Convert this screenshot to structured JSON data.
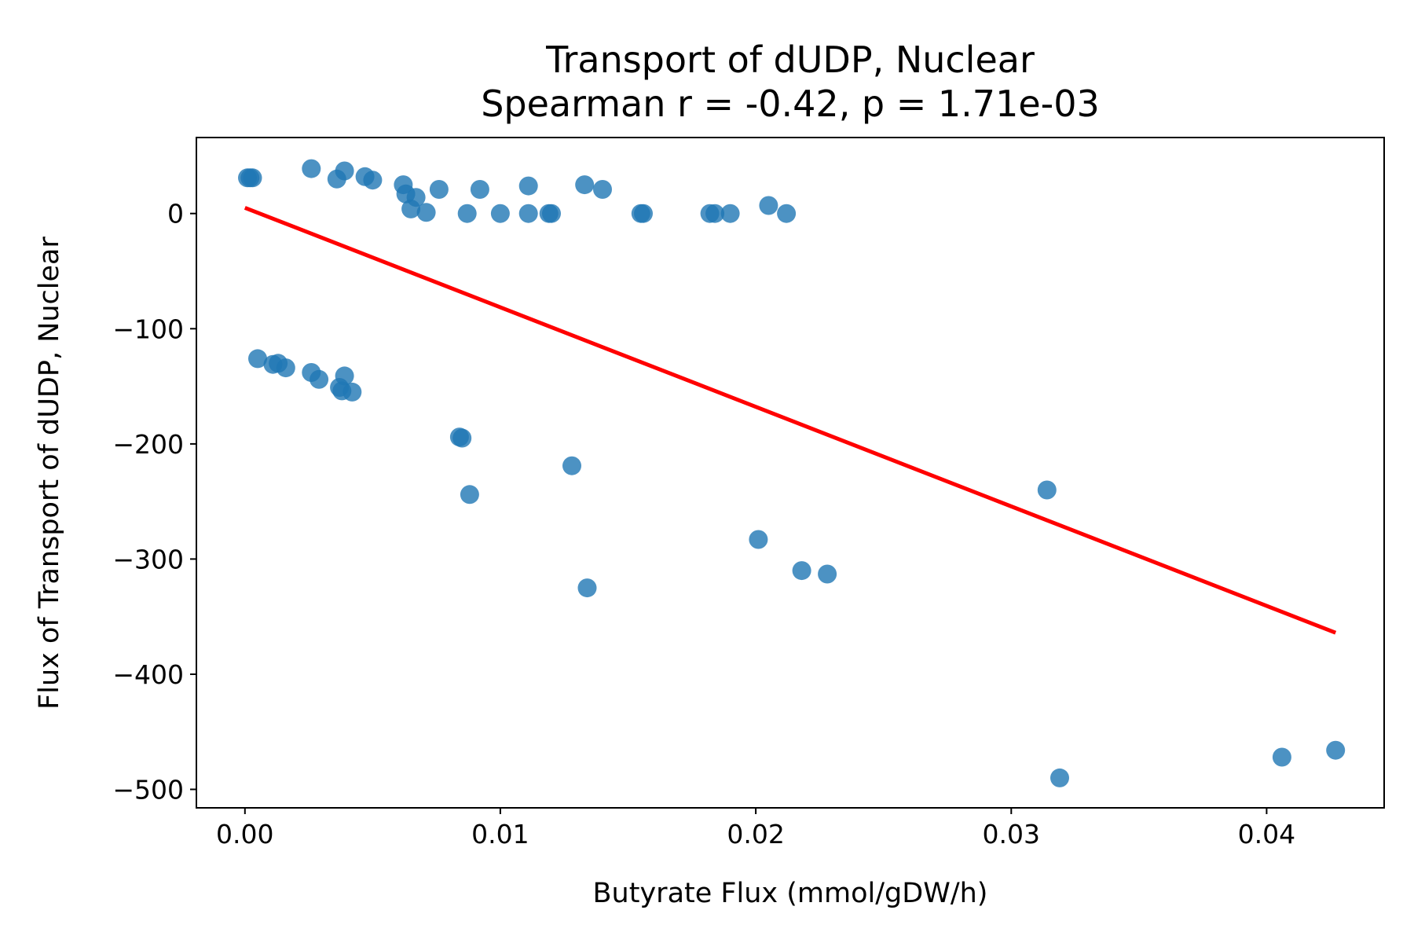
{
  "chart_data": {
    "type": "scatter",
    "title": "Transport of dUDP, Nuclear",
    "subtitle": "Spearman r = -0.42, p = 1.71e-03",
    "xlabel": "Butyrate Flux (mmol/gDW/h)",
    "ylabel": "Flux of Transport of dUDP, Nuclear",
    "xlim": [
      -0.0019,
      0.0446
    ],
    "ylim": [
      -516,
      66
    ],
    "xticks": [
      0.0,
      0.01,
      0.02,
      0.03,
      0.04
    ],
    "xtick_labels": [
      "0.00",
      "0.01",
      "0.02",
      "0.03",
      "0.04"
    ],
    "yticks": [
      0,
      -100,
      -200,
      -300,
      -400,
      -500
    ],
    "ytick_labels": [
      "0",
      "−100",
      "−200",
      "−300",
      "−400",
      "−500"
    ],
    "grid": false,
    "point_color": "#1f77b4",
    "line_color": "#ff0000",
    "points": [
      {
        "x": 0.0001,
        "y": 31
      },
      {
        "x": 0.0002,
        "y": 31
      },
      {
        "x": 0.0003,
        "y": 31
      },
      {
        "x": 0.0026,
        "y": 39
      },
      {
        "x": 0.0036,
        "y": 30
      },
      {
        "x": 0.0039,
        "y": 37
      },
      {
        "x": 0.0047,
        "y": 32
      },
      {
        "x": 0.005,
        "y": 29
      },
      {
        "x": 0.0062,
        "y": 25
      },
      {
        "x": 0.0063,
        "y": 17
      },
      {
        "x": 0.0067,
        "y": 14
      },
      {
        "x": 0.0065,
        "y": 4
      },
      {
        "x": 0.0071,
        "y": 1
      },
      {
        "x": 0.0076,
        "y": 21
      },
      {
        "x": 0.0087,
        "y": 0
      },
      {
        "x": 0.0092,
        "y": 21
      },
      {
        "x": 0.01,
        "y": 0
      },
      {
        "x": 0.0111,
        "y": 24
      },
      {
        "x": 0.0111,
        "y": 0
      },
      {
        "x": 0.0119,
        "y": 0
      },
      {
        "x": 0.012,
        "y": 0
      },
      {
        "x": 0.0133,
        "y": 25
      },
      {
        "x": 0.014,
        "y": 21
      },
      {
        "x": 0.0155,
        "y": 0
      },
      {
        "x": 0.0156,
        "y": 0
      },
      {
        "x": 0.0182,
        "y": 0
      },
      {
        "x": 0.0184,
        "y": 0
      },
      {
        "x": 0.019,
        "y": 0
      },
      {
        "x": 0.0205,
        "y": 7
      },
      {
        "x": 0.0212,
        "y": 0
      },
      {
        "x": 0.0005,
        "y": -126
      },
      {
        "x": 0.0011,
        "y": -131
      },
      {
        "x": 0.0013,
        "y": -130
      },
      {
        "x": 0.0016,
        "y": -134
      },
      {
        "x": 0.0026,
        "y": -138
      },
      {
        "x": 0.0029,
        "y": -144
      },
      {
        "x": 0.0037,
        "y": -151
      },
      {
        "x": 0.0038,
        "y": -154
      },
      {
        "x": 0.0039,
        "y": -141
      },
      {
        "x": 0.0042,
        "y": -155
      },
      {
        "x": 0.0084,
        "y": -194
      },
      {
        "x": 0.0085,
        "y": -195
      },
      {
        "x": 0.0088,
        "y": -244
      },
      {
        "x": 0.0128,
        "y": -219
      },
      {
        "x": 0.0134,
        "y": -325
      },
      {
        "x": 0.0201,
        "y": -283
      },
      {
        "x": 0.0218,
        "y": -310
      },
      {
        "x": 0.0228,
        "y": -313
      },
      {
        "x": 0.0314,
        "y": -240
      },
      {
        "x": 0.0319,
        "y": -490
      },
      {
        "x": 0.0406,
        "y": -472
      },
      {
        "x": 0.0427,
        "y": -466
      }
    ],
    "fit_line": {
      "x": [
        0.0,
        0.0427
      ],
      "y": [
        5,
        -364
      ]
    }
  }
}
